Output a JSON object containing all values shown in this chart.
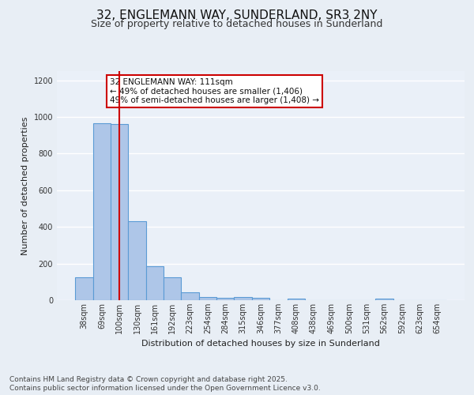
{
  "title_line1": "32, ENGLEMANN WAY, SUNDERLAND, SR3 2NY",
  "title_line2": "Size of property relative to detached houses in Sunderland",
  "xlabel": "Distribution of detached houses by size in Sunderland",
  "ylabel": "Number of detached properties",
  "categories": [
    "38sqm",
    "69sqm",
    "100sqm",
    "130sqm",
    "161sqm",
    "192sqm",
    "223sqm",
    "254sqm",
    "284sqm",
    "315sqm",
    "346sqm",
    "377sqm",
    "408sqm",
    "438sqm",
    "469sqm",
    "500sqm",
    "531sqm",
    "562sqm",
    "592sqm",
    "623sqm",
    "654sqm"
  ],
  "values": [
    125,
    965,
    960,
    430,
    185,
    125,
    43,
    18,
    14,
    18,
    13,
    0,
    7,
    0,
    0,
    0,
    0,
    9,
    0,
    0,
    0
  ],
  "bar_color": "#aec6e8",
  "bar_edge_color": "#5b9bd5",
  "annotation_text": "32 ENGLEMANN WAY: 111sqm\n← 49% of detached houses are smaller (1,406)\n49% of semi-detached houses are larger (1,408) →",
  "annotation_box_color": "#ffffff",
  "annotation_box_edge_color": "#cc0000",
  "ylim": [
    0,
    1250
  ],
  "yticks": [
    0,
    200,
    400,
    600,
    800,
    1000,
    1200
  ],
  "bg_color": "#e8eef5",
  "plot_bg_color": "#eaf0f8",
  "grid_color": "#ffffff",
  "footer_line1": "Contains HM Land Registry data © Crown copyright and database right 2025.",
  "footer_line2": "Contains public sector information licensed under the Open Government Licence v3.0.",
  "red_line_color": "#cc0000",
  "red_line_index": 2,
  "font_size_title1": 11,
  "font_size_title2": 9,
  "font_size_annot": 7.5,
  "font_size_footer": 6.5,
  "font_size_axis_label": 8,
  "font_size_ticks": 7
}
